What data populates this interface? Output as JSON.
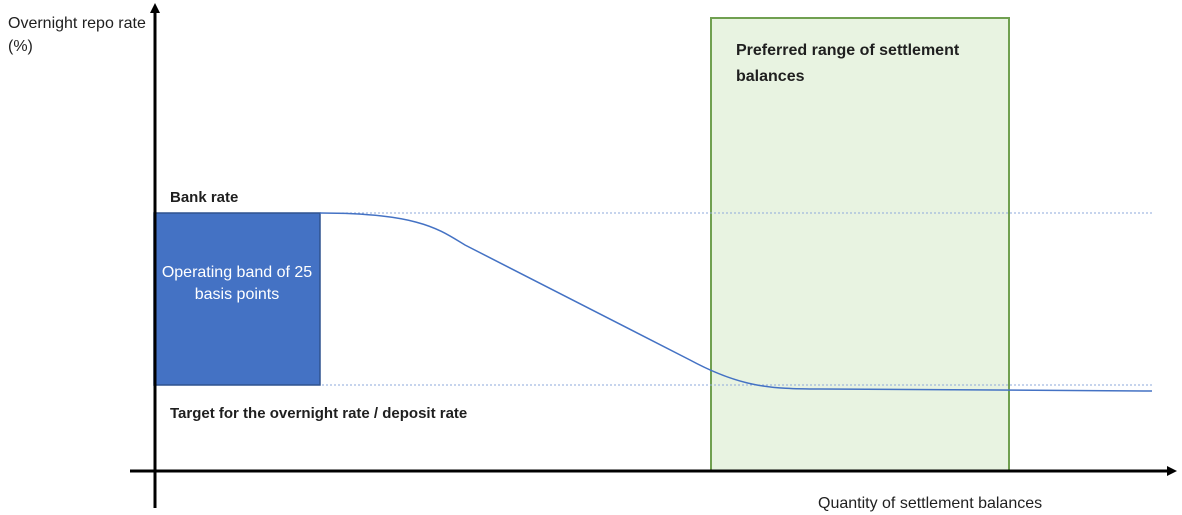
{
  "axes": {
    "y_label": "Overnight repo rate (%)",
    "x_label": "Quantity of settlement balances"
  },
  "levels": {
    "upper_label": "Bank rate",
    "lower_label": "Target for the overnight rate / deposit rate"
  },
  "operating_band": {
    "label": "Operating band of 25 basis points",
    "color": "#4472c4"
  },
  "preferred_range": {
    "label": "Preferred range of settlement balances",
    "fill_color": "#e8f3e1",
    "border_color": "#70a050"
  },
  "curve": {
    "color": "#4472c4"
  }
}
